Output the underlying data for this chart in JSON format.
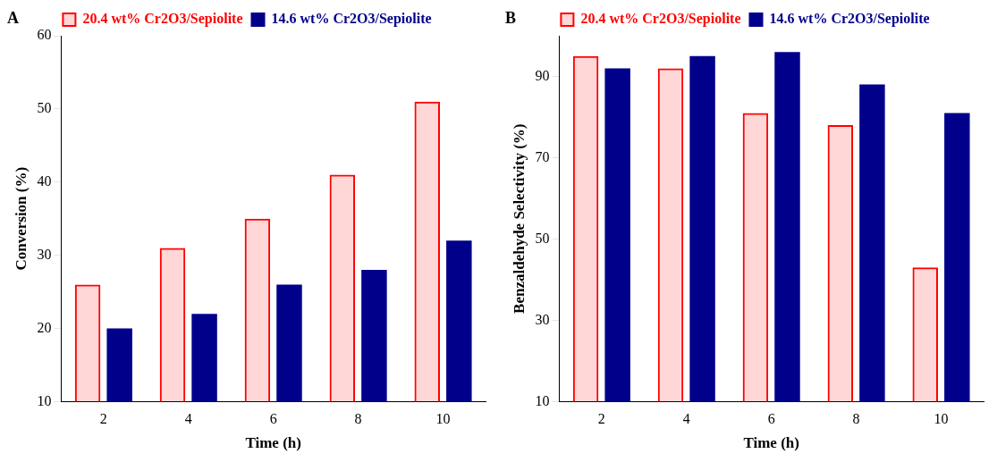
{
  "chart_data": [
    {
      "type": "bar",
      "xlabel": "Time (h)",
      "ylabel": "Conversion (%)",
      "annotations": [
        "A"
      ],
      "categories": [
        "2",
        "4",
        "6",
        "8",
        "10"
      ],
      "series": [
        {
          "name": "20.4 wt% Cr2O3/Sepiolite",
          "color": "#ff0000",
          "values": [
            26,
            31,
            35,
            41,
            51
          ]
        },
        {
          "name": "14.6 wt% Cr2O3/Sepiolite",
          "color": "#00008b",
          "values": [
            20,
            22,
            26,
            28,
            32
          ]
        }
      ],
      "ylim": [
        10,
        60
      ],
      "yticks": [
        10,
        20,
        30,
        40,
        50,
        60
      ],
      "legend": "top"
    },
    {
      "type": "bar",
      "xlabel": "Time (h)",
      "ylabel": "Benzaldehyde Selectivity (%)",
      "annotations": [
        "B"
      ],
      "categories": [
        "2",
        "4",
        "6",
        "8",
        "10"
      ],
      "series": [
        {
          "name": "20.4 wt% Cr2O3/Sepiolite",
          "color": "#ff0000",
          "values": [
            95,
            92,
            81,
            78,
            43
          ]
        },
        {
          "name": "14.6 wt% Cr2O3/Sepiolite",
          "color": "#00008b",
          "values": [
            92,
            95,
            96,
            88,
            81
          ]
        }
      ],
      "ylim": [
        10,
        100
      ],
      "yticks": [
        10,
        30,
        50,
        70,
        90
      ],
      "legend": "top"
    }
  ]
}
